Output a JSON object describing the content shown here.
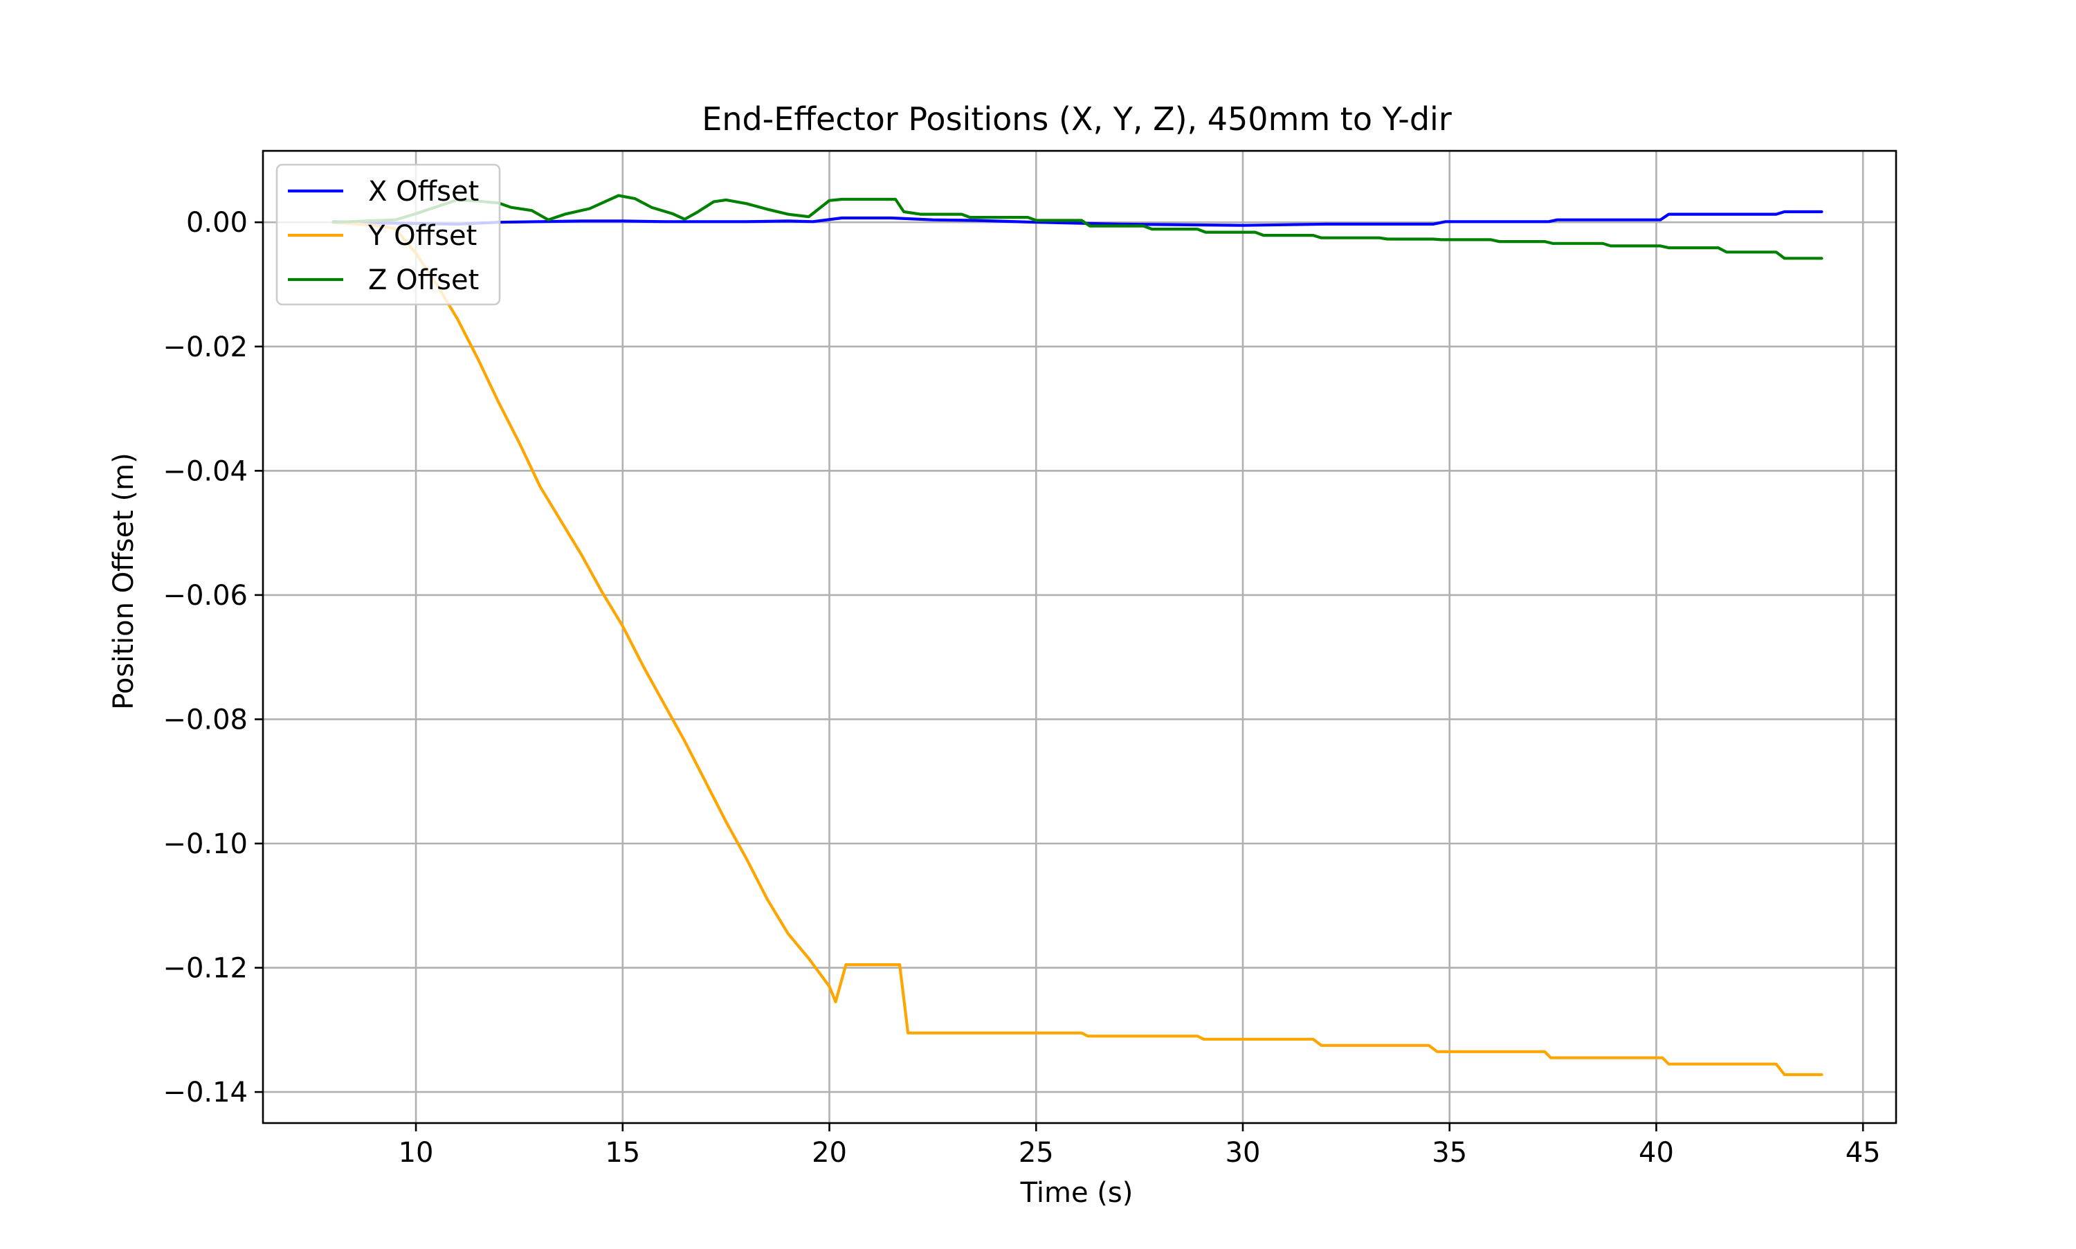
{
  "chart_data": {
    "type": "line",
    "title": "End-Effector Positions (X, Y, Z), 450mm to Y-dir",
    "xlabel": "Time (s)",
    "ylabel": "Position Offset (m)",
    "xlim": [
      6.3,
      45.8
    ],
    "ylim": [
      -0.145,
      0.0115
    ],
    "xticks": [
      10,
      15,
      20,
      25,
      30,
      35,
      40,
      45
    ],
    "xtick_labels": [
      "10",
      "15",
      "20",
      "25",
      "30",
      "35",
      "40",
      "45"
    ],
    "yticks": [
      0.0,
      -0.02,
      -0.04,
      -0.06,
      -0.08,
      -0.1,
      -0.12,
      -0.14
    ],
    "ytick_labels": [
      "0.00",
      "−0.02",
      "−0.04",
      "−0.06",
      "−0.08",
      "−0.10",
      "−0.12",
      "−0.14"
    ],
    "grid": true,
    "legend_position": "upper-left",
    "series": [
      {
        "name": "X Offset",
        "color": "#0000ff",
        "x": [
          8,
          9,
          10,
          11,
          12,
          13,
          14,
          15,
          16,
          17,
          18,
          19,
          19.6,
          20.3,
          21.5,
          22.5,
          23.5,
          25,
          27,
          30,
          32,
          34.6,
          34.9,
          37.4,
          37.6,
          40.1,
          40.3,
          42.9,
          43.1,
          44
        ],
        "y": [
          0.0001,
          -0.0001,
          -0.0002,
          -0.0003,
          0.0,
          0.0001,
          0.0002,
          0.0002,
          0.0001,
          0.0001,
          0.0001,
          0.0002,
          0.0001,
          0.0007,
          0.0007,
          0.0004,
          0.0003,
          0.0,
          -0.0003,
          -0.0005,
          -0.0003,
          -0.0003,
          0.0001,
          0.0001,
          0.0004,
          0.0004,
          0.0013,
          0.0013,
          0.0017,
          0.0017
        ]
      },
      {
        "name": "Y Offset",
        "color": "#ffa500",
        "x": [
          8,
          9,
          9.5,
          10,
          10.5,
          11,
          11.5,
          12,
          12.5,
          13,
          13.5,
          14,
          14.5,
          15,
          15.5,
          16,
          16.5,
          17,
          17.5,
          18,
          18.5,
          19,
          19.5,
          20,
          20.15,
          20.4,
          21.7,
          21.9,
          22.1,
          23.2,
          23.3,
          24.8,
          24.9,
          26.1,
          26.25,
          27.5,
          28.9,
          29.05,
          31.7,
          31.9,
          34.5,
          34.7,
          37.3,
          37.45,
          40.15,
          40.3,
          42.9,
          43.1,
          44
        ],
        "y": [
          0.0,
          -0.0005,
          -0.001,
          -0.005,
          -0.01,
          -0.0155,
          -0.022,
          -0.029,
          -0.0355,
          -0.0425,
          -0.048,
          -0.0535,
          -0.0595,
          -0.065,
          -0.0715,
          -0.0775,
          -0.0835,
          -0.09,
          -0.0965,
          -0.1025,
          -0.109,
          -0.1145,
          -0.1185,
          -0.123,
          -0.1255,
          -0.1195,
          -0.1195,
          -0.1305,
          -0.1305,
          -0.1305,
          -0.1305,
          -0.1305,
          -0.1305,
          -0.1305,
          -0.131,
          -0.131,
          -0.131,
          -0.1315,
          -0.1315,
          -0.1325,
          -0.1325,
          -0.1335,
          -0.1335,
          -0.1345,
          -0.1345,
          -0.1355,
          -0.1355,
          -0.1372,
          -0.1372
        ]
      },
      {
        "name": "Z Offset",
        "color": "#008000",
        "x": [
          8,
          8.8,
          9.5,
          10,
          10.5,
          11,
          11.5,
          12,
          12.3,
          12.8,
          13.2,
          13.6,
          14.2,
          14.6,
          14.9,
          15.3,
          15.7,
          16.2,
          16.5,
          16.8,
          17.2,
          17.5,
          18,
          18.5,
          19,
          19.5,
          20,
          20.3,
          20.6,
          21.6,
          21.8,
          22.2,
          23.2,
          23.4,
          24.8,
          25,
          26.1,
          26.3,
          27.6,
          27.8,
          28.9,
          29.1,
          30.3,
          30.5,
          31.7,
          31.9,
          33.3,
          33.5,
          34.6,
          34.8,
          36,
          36.2,
          37.3,
          37.5,
          38.7,
          38.9,
          40.1,
          40.3,
          41.5,
          41.7,
          42.9,
          43.1,
          44
        ],
        "y": [
          0.0,
          0.0002,
          0.0004,
          0.0014,
          0.0025,
          0.0036,
          0.0034,
          0.0031,
          0.0024,
          0.0019,
          0.0004,
          0.0013,
          0.0022,
          0.0034,
          0.0043,
          0.0038,
          0.0024,
          0.0014,
          0.0005,
          0.0016,
          0.0033,
          0.0036,
          0.003,
          0.0021,
          0.0013,
          0.0009,
          0.0035,
          0.0037,
          0.0037,
          0.0037,
          0.0017,
          0.0013,
          0.0013,
          0.0008,
          0.0008,
          0.0003,
          0.0003,
          -0.0006,
          -0.0006,
          -0.0011,
          -0.0011,
          -0.0016,
          -0.0016,
          -0.0021,
          -0.0021,
          -0.0025,
          -0.0025,
          -0.0027,
          -0.0027,
          -0.0028,
          -0.0028,
          -0.0031,
          -0.0031,
          -0.0034,
          -0.0034,
          -0.0038,
          -0.0038,
          -0.0041,
          -0.0041,
          -0.0048,
          -0.0048,
          -0.0058,
          -0.0058
        ]
      }
    ]
  }
}
